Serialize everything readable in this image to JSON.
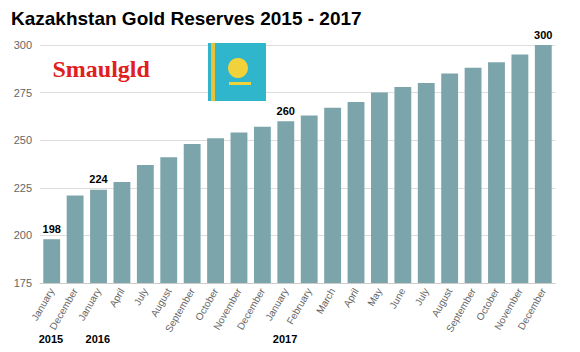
{
  "chart_data": {
    "type": "bar",
    "title": "Kazakhstan Gold Reserves 2015 - 2017",
    "categories": [
      "January",
      "December",
      "January",
      "April",
      "July",
      "August",
      "September",
      "October",
      "November",
      "December",
      "January",
      "February",
      "March",
      "April",
      "May",
      "June",
      "July",
      "August",
      "September",
      "October",
      "November",
      "December"
    ],
    "values": [
      198,
      221,
      224,
      228,
      237,
      241,
      248,
      251,
      254,
      257,
      260,
      263,
      267,
      270,
      275,
      278,
      280,
      285,
      288,
      291,
      295,
      300
    ],
    "value_labels": [
      "198",
      null,
      "224",
      null,
      null,
      null,
      null,
      null,
      null,
      null,
      "260",
      null,
      null,
      null,
      null,
      null,
      null,
      null,
      null,
      null,
      null,
      "300"
    ],
    "data_labels": true,
    "color": "#7ba5ab",
    "ylim": [
      175,
      300
    ],
    "yticks": [
      175,
      200,
      225,
      250,
      275,
      300
    ],
    "grid": true,
    "annotations": [
      {
        "text": "2015",
        "x": 0
      },
      {
        "text": "2016",
        "x": 2
      },
      {
        "text": "2017",
        "x": 10
      }
    ],
    "watermark": "Smaulgld"
  }
}
